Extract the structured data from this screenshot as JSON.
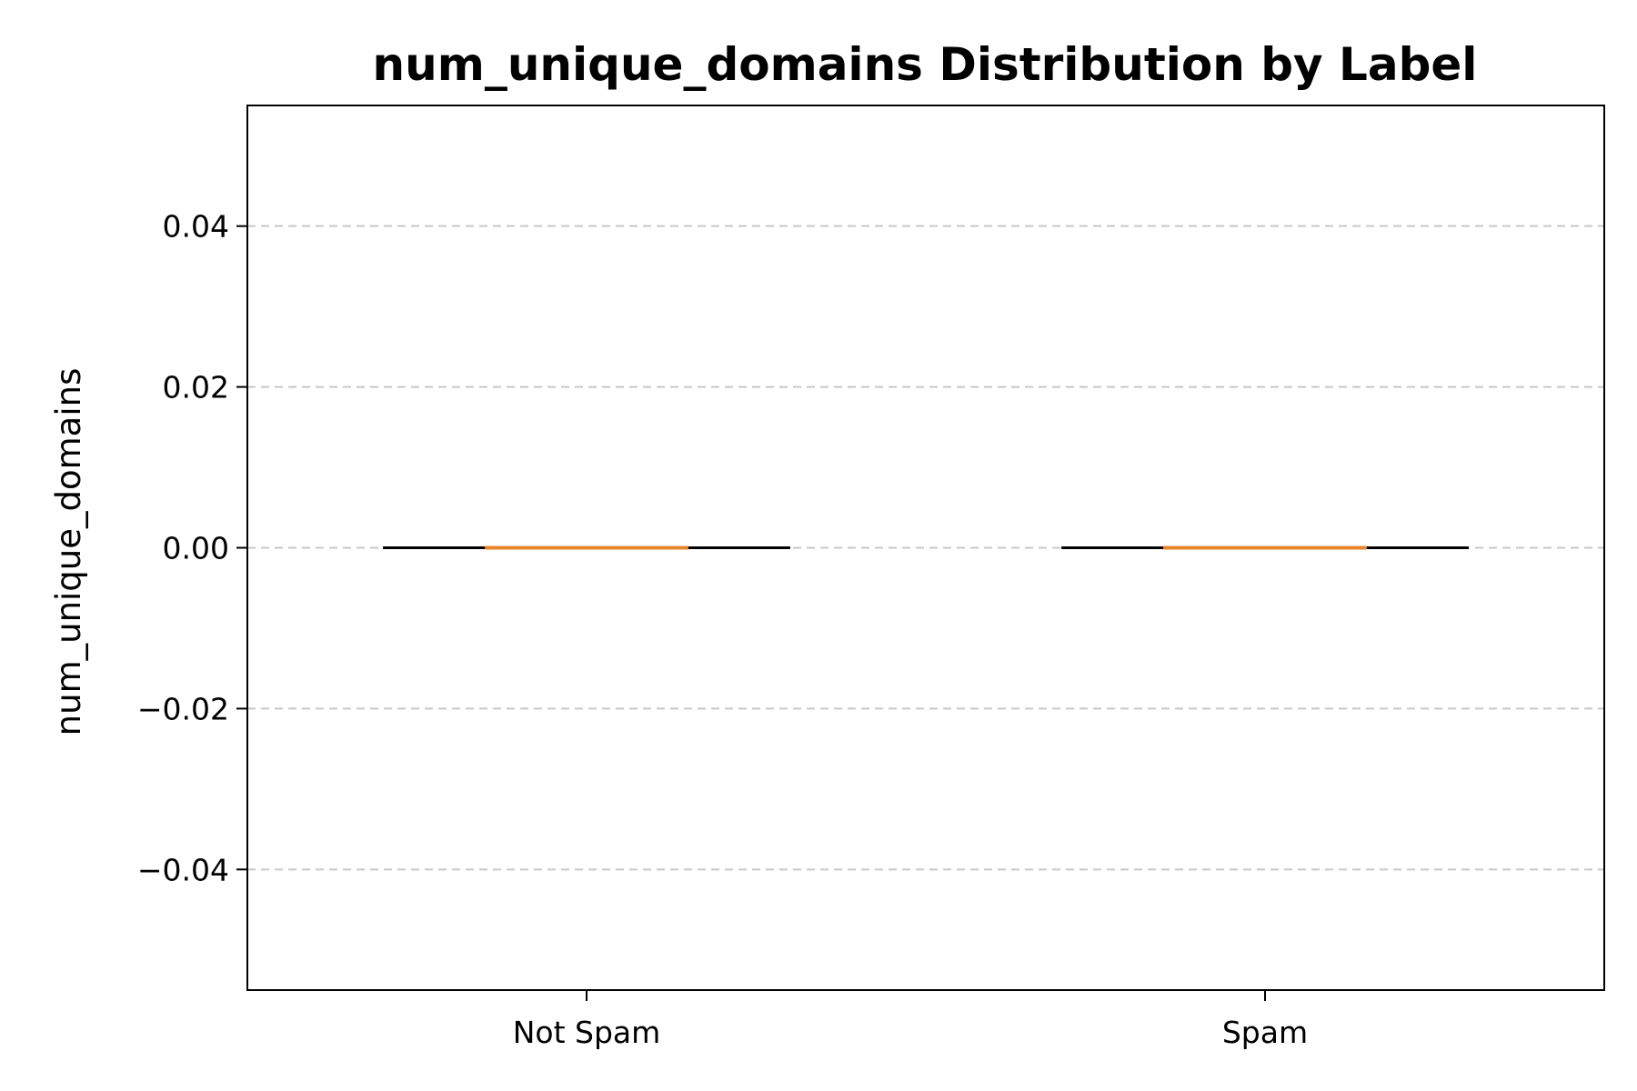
{
  "chart_data": {
    "type": "box",
    "title": "num_unique_domains Distribution by Label",
    "xlabel": "",
    "ylabel": "num_unique_domains",
    "categories": [
      "Not Spam",
      "Spam"
    ],
    "boxes": [
      {
        "category": "Not Spam",
        "min": 0,
        "q1": 0,
        "median": 0,
        "q3": 0,
        "max": 0
      },
      {
        "category": "Spam",
        "min": 0,
        "q1": 0,
        "median": 0,
        "q3": 0,
        "max": 0
      }
    ],
    "ylim": [
      -0.055,
      0.055
    ],
    "yticks": [
      -0.04,
      -0.02,
      0.0,
      0.02,
      0.04
    ],
    "ytick_labels": [
      "−0.04",
      "−0.02",
      "0.00",
      "0.02",
      "0.04"
    ],
    "grid": "y-dashed",
    "colors": {
      "median": "#e8842c",
      "whisker": "#000000",
      "grid": "#c8c8c8"
    }
  }
}
